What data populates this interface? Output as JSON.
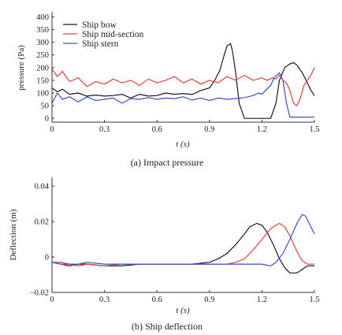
{
  "chart_data": [
    {
      "type": "line",
      "caption": "(a) Impact pressure",
      "xlabel": "t (s)",
      "ylabel": "pressure (Pa)",
      "xlim": [
        0,
        1.5
      ],
      "ylim": [
        -15,
        420
      ],
      "xticks": [
        0,
        0.3,
        0.6,
        0.9,
        1.2,
        1.5
      ],
      "xtick_labels": [
        "0",
        "0.3",
        "0.6",
        "0.9",
        "1.2",
        "1.5"
      ],
      "yticks": [
        0,
        50,
        100,
        150,
        200,
        250,
        300,
        350,
        400
      ],
      "ytick_labels": [
        "0",
        "50",
        "100",
        "150",
        "200",
        "250",
        "300",
        "350",
        "400"
      ],
      "legend": "top-left",
      "series": [
        {
          "name": "Ship bow",
          "color": "#1a1a1a",
          "x": [
            0,
            0.03,
            0.06,
            0.1,
            0.15,
            0.2,
            0.25,
            0.3,
            0.35,
            0.4,
            0.45,
            0.5,
            0.55,
            0.6,
            0.65,
            0.7,
            0.75,
            0.8,
            0.85,
            0.9,
            0.93,
            0.96,
            0.98,
            1.0,
            1.02,
            1.03,
            1.05,
            1.07,
            1.1,
            1.15,
            1.2,
            1.25,
            1.28,
            1.3,
            1.33,
            1.36,
            1.38,
            1.4,
            1.43,
            1.46,
            1.48,
            1.5
          ],
          "y": [
            120,
            105,
            115,
            95,
            100,
            88,
            92,
            88,
            90,
            95,
            80,
            95,
            88,
            90,
            100,
            95,
            98,
            94,
            110,
            120,
            150,
            190,
            240,
            285,
            295,
            270,
            180,
            60,
            0,
            0,
            0,
            0,
            60,
            150,
            200,
            215,
            220,
            210,
            180,
            140,
            110,
            90
          ]
        },
        {
          "name": "Ship mid-section",
          "color": "#e0443c",
          "x": [
            0,
            0.03,
            0.06,
            0.1,
            0.15,
            0.2,
            0.25,
            0.3,
            0.35,
            0.4,
            0.45,
            0.5,
            0.55,
            0.6,
            0.65,
            0.7,
            0.75,
            0.8,
            0.85,
            0.9,
            0.95,
            1.0,
            1.05,
            1.1,
            1.15,
            1.2,
            1.23,
            1.26,
            1.28,
            1.3,
            1.32,
            1.34,
            1.36,
            1.38,
            1.4,
            1.42,
            1.44,
            1.46,
            1.48,
            1.5
          ],
          "y": [
            195,
            165,
            185,
            145,
            160,
            125,
            145,
            135,
            155,
            140,
            150,
            130,
            155,
            140,
            150,
            165,
            140,
            155,
            135,
            150,
            140,
            165,
            150,
            170,
            150,
            160,
            150,
            160,
            155,
            170,
            150,
            140,
            110,
            60,
            50,
            80,
            130,
            150,
            170,
            200
          ]
        },
        {
          "name": "Ship stern",
          "color": "#3b4fc8",
          "x": [
            0,
            0.03,
            0.06,
            0.1,
            0.15,
            0.2,
            0.25,
            0.3,
            0.35,
            0.4,
            0.45,
            0.5,
            0.55,
            0.6,
            0.65,
            0.7,
            0.75,
            0.8,
            0.85,
            0.9,
            0.95,
            1.0,
            1.05,
            1.1,
            1.15,
            1.18,
            1.2,
            1.22,
            1.25,
            1.27,
            1.3,
            1.32,
            1.34,
            1.36,
            1.38,
            1.4,
            1.45,
            1.5
          ],
          "y": [
            60,
            100,
            75,
            85,
            65,
            85,
            70,
            75,
            80,
            60,
            78,
            75,
            82,
            75,
            80,
            78,
            85,
            72,
            80,
            70,
            80,
            75,
            78,
            82,
            90,
            100,
            95,
            110,
            130,
            160,
            180,
            150,
            60,
            5,
            5,
            5,
            5,
            5
          ]
        }
      ]
    },
    {
      "type": "line",
      "caption": "(b) Ship deflection",
      "xlabel": "t (s)",
      "ylabel": "Deflection (m)",
      "xlim": [
        0,
        1.5
      ],
      "ylim": [
        -0.02,
        0.045
      ],
      "xticks": [
        0,
        0.3,
        0.6,
        0.9,
        1.2,
        1.5
      ],
      "xtick_labels": [
        "0",
        "0.3",
        "0.6",
        "0.9",
        "1.2",
        "1.5"
      ],
      "yticks": [
        -0.02,
        0,
        0.02,
        0.04
      ],
      "ytick_labels": [
        "−0.02",
        "0",
        "0.02",
        "0.04"
      ],
      "series": [
        {
          "color": "#1a1a1a",
          "x": [
            0,
            0.05,
            0.1,
            0.15,
            0.2,
            0.3,
            0.4,
            0.5,
            0.6,
            0.7,
            0.8,
            0.9,
            0.95,
            1.0,
            1.05,
            1.1,
            1.13,
            1.17,
            1.2,
            1.23,
            1.27,
            1.3,
            1.33,
            1.36,
            1.4,
            1.43,
            1.46,
            1.5
          ],
          "y": [
            -0.003,
            -0.004,
            -0.005,
            -0.004,
            -0.004,
            -0.005,
            -0.005,
            -0.004,
            -0.004,
            -0.004,
            -0.004,
            -0.003,
            -0.001,
            0.002,
            0.007,
            0.013,
            0.017,
            0.019,
            0.018,
            0.014,
            0.006,
            -0.001,
            -0.006,
            -0.009,
            -0.009,
            -0.007,
            -0.005,
            -0.005
          ]
        },
        {
          "color": "#e0443c",
          "x": [
            0,
            0.05,
            0.1,
            0.15,
            0.2,
            0.3,
            0.4,
            0.5,
            0.6,
            0.7,
            0.8,
            0.9,
            1.0,
            1.05,
            1.1,
            1.15,
            1.2,
            1.25,
            1.28,
            1.3,
            1.33,
            1.36,
            1.4,
            1.43,
            1.46,
            1.5
          ],
          "y": [
            -0.003,
            -0.004,
            -0.004,
            -0.005,
            -0.004,
            -0.005,
            -0.004,
            -0.004,
            -0.004,
            -0.004,
            -0.004,
            -0.004,
            -0.004,
            -0.003,
            -0.001,
            0.004,
            0.01,
            0.016,
            0.018,
            0.019,
            0.017,
            0.012,
            0.003,
            -0.002,
            -0.004,
            -0.004
          ]
        },
        {
          "color": "#3b4fc8",
          "x": [
            0,
            0.05,
            0.1,
            0.15,
            0.2,
            0.3,
            0.4,
            0.5,
            0.6,
            0.7,
            0.8,
            0.9,
            1.0,
            1.1,
            1.2,
            1.25,
            1.28,
            1.32,
            1.36,
            1.4,
            1.43,
            1.45,
            1.48,
            1.5
          ],
          "y": [
            -0.003,
            -0.003,
            -0.004,
            -0.004,
            -0.003,
            -0.004,
            -0.004,
            -0.004,
            -0.004,
            -0.004,
            -0.004,
            -0.004,
            -0.004,
            -0.004,
            -0.004,
            -0.005,
            -0.003,
            0.002,
            0.01,
            0.019,
            0.024,
            0.023,
            0.017,
            0.013
          ]
        }
      ]
    }
  ]
}
